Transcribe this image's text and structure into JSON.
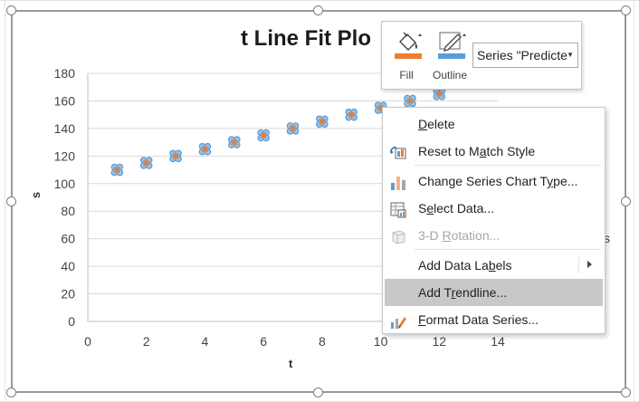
{
  "chart": {
    "title_visible": "t Line Fit  Plo",
    "x_axis_label": "t",
    "y_axis_label": "s",
    "legend_fragment": "s"
  },
  "chart_data": {
    "type": "scatter",
    "title": "t Line Fit  Plo",
    "xlabel": "t",
    "ylabel": "s",
    "xlim": [
      0,
      14
    ],
    "ylim": [
      0,
      180
    ],
    "x_ticks": [
      "0",
      "2",
      "4",
      "6",
      "8",
      "10",
      "12",
      "14"
    ],
    "y_ticks": [
      "0",
      "20",
      "40",
      "60",
      "80",
      "100",
      "120",
      "140",
      "160",
      "180"
    ],
    "grid": true,
    "series": [
      {
        "color": "#5b9bd5",
        "x": [
          1,
          2,
          3,
          4,
          5,
          6,
          7,
          8,
          9,
          10,
          11,
          12
        ],
        "y": [
          110,
          115,
          120,
          125,
          130,
          135,
          140,
          145,
          150,
          155,
          160,
          165
        ]
      },
      {
        "color": "#ed7d31",
        "x": [
          1,
          2,
          3,
          4,
          5,
          6,
          7,
          8,
          9,
          10,
          11,
          12
        ],
        "y": [
          110,
          115,
          120,
          125,
          130,
          135,
          140,
          145,
          150,
          155,
          160,
          165
        ]
      }
    ]
  },
  "mini_toolbar": {
    "fill_label": "Fill",
    "outline_label": "Outline",
    "series_value": "Series \"Predicte",
    "fill_color": "#ed7d31",
    "outline_color": "#5b9bd5"
  },
  "context_menu": {
    "items": [
      {
        "pre": "",
        "key": "D",
        "post": "elete",
        "icon": "",
        "disabled": false
      },
      {
        "pre": "Reset to M",
        "key": "a",
        "post": "tch Style",
        "icon": "reset-style-icon",
        "disabled": false
      },
      {
        "pre": "Change Series Chart T",
        "key": "y",
        "post": "pe...",
        "icon": "chart-type-icon",
        "disabled": false
      },
      {
        "pre": "S",
        "key": "e",
        "post": "lect Data...",
        "icon": "select-data-icon",
        "disabled": false
      },
      {
        "pre": "3-D ",
        "key": "R",
        "post": "otation...",
        "icon": "rotation-3d-icon",
        "disabled": true
      },
      {
        "pre": "Add Data La",
        "key": "b",
        "post": "els",
        "icon": "",
        "disabled": false
      },
      {
        "pre": "Add T",
        "key": "r",
        "post": "endline...",
        "icon": "",
        "disabled": false
      },
      {
        "pre": "",
        "key": "F",
        "post": "ormat Data Series...",
        "icon": "format-series-icon",
        "disabled": false
      }
    ]
  }
}
